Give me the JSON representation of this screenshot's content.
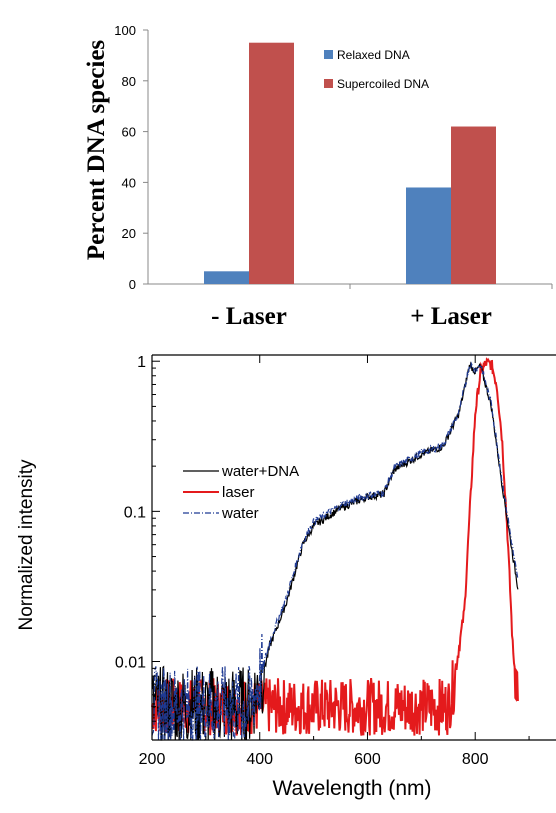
{
  "chart_data": [
    {
      "type": "bar",
      "ylabel": "Percent DNA species",
      "categories": [
        "- Laser",
        "+ Laser"
      ],
      "ylim": [
        0,
        100
      ],
      "yticks": [
        0,
        20,
        40,
        60,
        80,
        100
      ],
      "legend_position": "top-right",
      "grid": false,
      "series": [
        {
          "name": "Relaxed DNA",
          "color": "#4f81bd",
          "values": [
            5,
            38
          ]
        },
        {
          "name": "Supercoiled DNA",
          "color": "#c0504d",
          "values": [
            95,
            62
          ]
        }
      ]
    },
    {
      "type": "line",
      "xlabel": "Wavelength (nm)",
      "ylabel": "Normalized intensity",
      "xlim": [
        200,
        950
      ],
      "ylim": [
        0.003,
        1.1
      ],
      "yscale": "log",
      "xticks": [
        200,
        400,
        600,
        800
      ],
      "yticks": [
        0.01,
        0.1,
        1
      ],
      "ytick_labels": [
        "0.01",
        "0.1",
        "1"
      ],
      "legend_position": "left",
      "grid": false,
      "series": [
        {
          "name": "water+DNA",
          "color": "#000000",
          "style": "solid",
          "x": [
            200,
            300,
            380,
            400,
            420,
            450,
            480,
            500,
            550,
            600,
            630,
            650,
            700,
            740,
            770,
            790,
            800,
            810,
            830,
            850,
            870,
            880
          ],
          "y": [
            0.005,
            0.005,
            0.005,
            0.007,
            0.013,
            0.025,
            0.06,
            0.08,
            0.105,
            0.125,
            0.13,
            0.19,
            0.24,
            0.27,
            0.45,
            0.95,
            0.85,
            0.93,
            0.5,
            0.15,
            0.05,
            0.03
          ]
        },
        {
          "name": "laser",
          "color": "#e41a1c",
          "style": "solid",
          "x": [
            200,
            300,
            400,
            500,
            600,
            700,
            750,
            760,
            780,
            790,
            800,
            810,
            820,
            830,
            840,
            850,
            860,
            870,
            875,
            880
          ],
          "y": [
            0.005,
            0.005,
            0.005,
            0.005,
            0.005,
            0.005,
            0.005,
            0.007,
            0.022,
            0.1,
            0.45,
            0.85,
            0.97,
            0.95,
            0.7,
            0.3,
            0.07,
            0.012,
            0.008,
            0.007
          ]
        },
        {
          "name": "water",
          "color": "#1f3a93",
          "style": "dash-dot",
          "x": [
            200,
            300,
            380,
            400,
            420,
            450,
            480,
            500,
            550,
            600,
            630,
            650,
            700,
            740,
            770,
            790,
            800,
            810,
            830,
            850,
            870,
            880
          ],
          "y": [
            0.005,
            0.005,
            0.005,
            0.0075,
            0.014,
            0.027,
            0.063,
            0.085,
            0.11,
            0.128,
            0.133,
            0.195,
            0.245,
            0.275,
            0.46,
            0.96,
            0.87,
            0.95,
            0.52,
            0.16,
            0.055,
            0.033
          ]
        }
      ]
    }
  ]
}
